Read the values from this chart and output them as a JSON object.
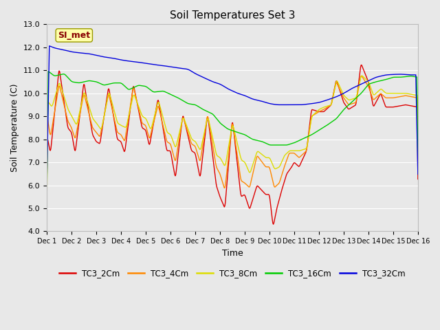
{
  "title": "Soil Temperatures Set 3",
  "xlabel": "Time",
  "ylabel": "Soil Temperature (C)",
  "ylim": [
    4.0,
    13.0
  ],
  "yticks": [
    4.0,
    5.0,
    6.0,
    7.0,
    8.0,
    9.0,
    10.0,
    11.0,
    12.0,
    13.0
  ],
  "xtick_labels": [
    "Dec 1",
    "Dec 2",
    "Dec 3",
    "Dec 4",
    "Dec 5",
    "Dec 6",
    "Dec 7",
    "Dec 8",
    "Dec 9",
    "Dec 10",
    "Dec 11",
    "Dec 12",
    "Dec 13",
    "Dec 14",
    "Dec 15",
    "Dec 16"
  ],
  "series_colors": {
    "TC3_2Cm": "#dd0000",
    "TC3_4Cm": "#ff8800",
    "TC3_8Cm": "#dddd00",
    "TC3_16Cm": "#00cc00",
    "TC3_32Cm": "#0000dd"
  },
  "annotation_text": "SI_met",
  "annotation_color": "#880000",
  "annotation_bg": "#ffffaa",
  "background_color": "#e8e8e8",
  "plot_bg": "#e8e8e8",
  "grid_color": "#ffffff",
  "fig_bg": "#e8e8e8"
}
